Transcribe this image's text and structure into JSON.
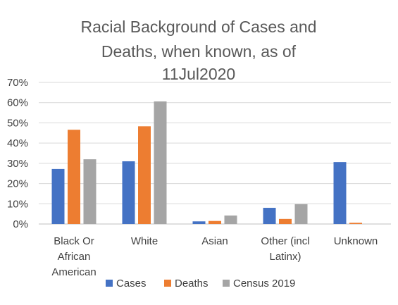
{
  "chart_data": {
    "type": "bar",
    "title_lines": [
      "Racial Background of Cases and",
      "Deaths, when known, as of",
      "11Jul2020"
    ],
    "categories": [
      [
        "Black Or",
        "African",
        "American"
      ],
      [
        "White"
      ],
      [
        "Asian"
      ],
      [
        "Other (incl",
        "Latinx)"
      ],
      [
        "Unknown"
      ]
    ],
    "series": [
      {
        "name": "Cases",
        "color": "#4472c4",
        "values": [
          27.2,
          31.0,
          1.3,
          8.0,
          30.6
        ]
      },
      {
        "name": "Deaths",
        "color": "#ed7d31",
        "values": [
          46.6,
          48.3,
          1.5,
          2.5,
          0.6
        ]
      },
      {
        "name": "Census 2019",
        "color": "#a5a5a5",
        "values": [
          32.0,
          60.6,
          4.2,
          9.8,
          0
        ]
      }
    ],
    "y_ticks": [
      "0%",
      "10%",
      "20%",
      "30%",
      "40%",
      "50%",
      "60%",
      "70%"
    ],
    "ylim": [
      0,
      70
    ],
    "grid": true,
    "legend_position": "bottom"
  }
}
